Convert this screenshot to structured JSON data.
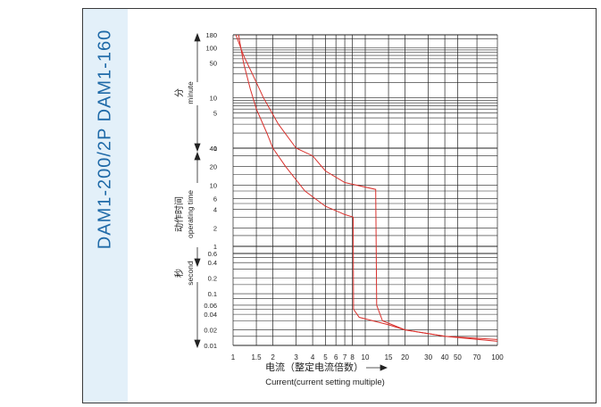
{
  "model_title": "DAM1-200/2P  DAM1-160",
  "axis_labels": {
    "minute_cn": "分",
    "minute_en": "minute",
    "operating_cn": "动作时间",
    "operating_en": "operating time",
    "second_cn": "秒",
    "second_en": "second",
    "x_cn": "电流（整定电流倍数）",
    "x_en": "Current(current setting multiple)"
  },
  "colors": {
    "curve": "#d9302c",
    "grid": "#222222",
    "title": "#1f6aa8",
    "panel": "#e3f0f9"
  },
  "chart_data": {
    "type": "line",
    "x_scale": "log",
    "y_scale": "log",
    "xlim": [
      1,
      100
    ],
    "x_ticks": [
      1,
      1.5,
      2,
      3,
      4,
      5,
      6,
      7,
      8,
      10,
      15,
      20,
      30,
      40,
      50,
      70,
      100
    ],
    "x_tick_labels": [
      "1",
      "1.5",
      "2",
      "3",
      "4",
      "5",
      "6",
      "7",
      "8",
      "10",
      "15",
      "20",
      "30",
      "40",
      "50",
      "70",
      "100"
    ],
    "y_sections": [
      {
        "unit": "minute",
        "range": [
          1,
          180
        ],
        "ticks": [
          1,
          5,
          10,
          50,
          100,
          180
        ],
        "tick_labels": [
          "1",
          "5",
          "10",
          "50",
          "100",
          "180"
        ]
      },
      {
        "unit": "second",
        "range": [
          1,
          40
        ],
        "ticks": [
          1,
          2,
          4,
          6,
          10,
          20,
          40
        ],
        "tick_labels": [
          "1",
          "2",
          "4",
          "6",
          "10",
          "20",
          "40"
        ]
      },
      {
        "unit": "second",
        "range": [
          0.01,
          0.6
        ],
        "ticks": [
          0.01,
          0.02,
          0.04,
          0.06,
          0.1,
          0.2,
          0.4,
          0.6
        ],
        "tick_labels": [
          "0.01",
          "0.02",
          "0.04",
          "0.06",
          "0.1",
          "0.2",
          "0.4",
          "0.6"
        ]
      }
    ],
    "series": [
      {
        "points": [
          {
            "x": 1.05,
            "t": 180,
            "unit": "minute"
          },
          {
            "x": 1.2,
            "t": 70,
            "unit": "minute"
          },
          {
            "x": 1.4,
            "t": 30,
            "unit": "minute"
          },
          {
            "x": 1.7,
            "t": 10,
            "unit": "minute"
          },
          {
            "x": 2.2,
            "t": 3,
            "unit": "minute"
          },
          {
            "x": 3,
            "t": 1,
            "unit": "minute"
          },
          {
            "x": 4,
            "t": 30,
            "unit": "second"
          },
          {
            "x": 5,
            "t": 17,
            "unit": "second"
          },
          {
            "x": 7,
            "t": 11,
            "unit": "second"
          },
          {
            "x": 12,
            "t": 8.5,
            "unit": "second"
          },
          {
            "x": 12.2,
            "t": 0.06,
            "unit": "second"
          },
          {
            "x": 13.5,
            "t": 0.03,
            "unit": "second"
          },
          {
            "x": 20,
            "t": 0.02,
            "unit": "second"
          },
          {
            "x": 40,
            "t": 0.015,
            "unit": "second"
          },
          {
            "x": 100,
            "t": 0.013,
            "unit": "second"
          }
        ]
      },
      {
        "points": [
          {
            "x": 1.1,
            "t": 180,
            "unit": "minute"
          },
          {
            "x": 1.2,
            "t": 50,
            "unit": "minute"
          },
          {
            "x": 1.35,
            "t": 15,
            "unit": "minute"
          },
          {
            "x": 1.5,
            "t": 6,
            "unit": "minute"
          },
          {
            "x": 1.8,
            "t": 2,
            "unit": "minute"
          },
          {
            "x": 2,
            "t": 1,
            "unit": "minute"
          },
          {
            "x": 2.5,
            "t": 20,
            "unit": "second"
          },
          {
            "x": 3.5,
            "t": 8,
            "unit": "second"
          },
          {
            "x": 5,
            "t": 4.5,
            "unit": "second"
          },
          {
            "x": 7,
            "t": 3.3,
            "unit": "second"
          },
          {
            "x": 8.1,
            "t": 3,
            "unit": "second"
          },
          {
            "x": 8.15,
            "t": 0.05,
            "unit": "second"
          },
          {
            "x": 9,
            "t": 0.035,
            "unit": "second"
          },
          {
            "x": 15,
            "t": 0.025,
            "unit": "second"
          },
          {
            "x": 20,
            "t": 0.02,
            "unit": "second"
          },
          {
            "x": 40,
            "t": 0.015,
            "unit": "second"
          },
          {
            "x": 100,
            "t": 0.012,
            "unit": "second"
          }
        ]
      }
    ]
  }
}
